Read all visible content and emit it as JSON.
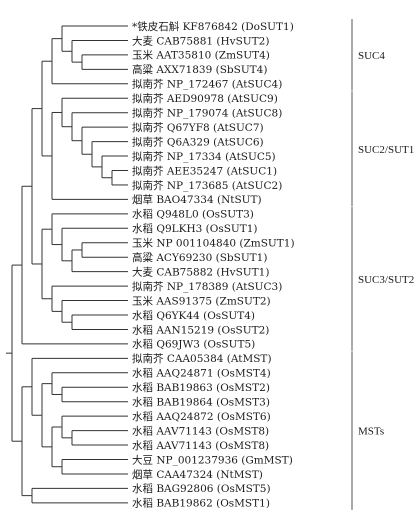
{
  "colors": {
    "line": "#333333",
    "text": "#1a1a1a",
    "background": "#ffffff"
  },
  "leaves": [
    "*铁皮石斛 KF876842 (DoSUT1)",
    "大麦 CAB75881 (HvSUT2)",
    "玉米 AAT35810 (ZmSUT4)",
    "高粱 AXX71839 (SbSUT4)",
    "拟南芥 NP_172467 (AtSUC4)",
    "拟南芥 AED90978 (AtSUC9)",
    "拟南芥 NP_179074 (AtSUC8)",
    "拟南芥 Q67YF8 (AtSUC7)",
    "拟南芥 Q6A329 (AtSUC6)",
    "拟南芥 NP_17334 (AtSUC5)",
    "拟南芥 AEE35247 (AtSUC1)",
    "拟南芥 NP_173685 (AtSUC2)",
    "烟草 BAO47334 (NtSUT)",
    "水稻 Q948L0 (OsSUT3)",
    "水稻 Q9LKH3 (OsSUT1)",
    "玉米 NP 001104840 (ZmSUT1)",
    "高粱 ACY69230 (SbSUT1)",
    "大麦 CAB75882 (HvSUT1)",
    "拟南芥 NP_178389 (AtSUC3)",
    "玉米 AAS91375 (ZmSUT2)",
    "水稻 Q6YK44 (OsSUT4)",
    "水稻 AAN15219 (OsSUT2)",
    "水稻 Q69JW3 (OsSUT5)",
    "拟南芥 CAA05384 (AtMST)",
    "水稻 AAQ24871 (OsMST4)",
    "水稻 BAB19863 (OsMST2)",
    "水稻 BAB19864 (OsMST3)",
    "水稻 AAQ24872 (OsMST6)",
    "水稻 AAV71143 (OsMST8)",
    "水稻 AAV71143 (OsMST8)",
    "大豆 NP_001237936 (GmMST)",
    "烟草 CAA47324 (NtMST)",
    "水稻 BAG92806 (OsMST5)",
    "水稻 BAB19862 (OsMST1)"
  ],
  "groups": [
    {
      "label": "SUC4",
      "first_leaf": 0,
      "last_leaf": 4
    },
    {
      "label": "SUC2/SUT1",
      "first_leaf": 5,
      "last_leaf": 12
    },
    {
      "label": "SUC3/SUT2",
      "first_leaf": 13,
      "last_leaf": 22
    },
    {
      "label": "MSTs",
      "first_leaf": 23,
      "last_leaf": 33
    }
  ],
  "tree": {
    "c": [
      {
        "c": [
          {
            "c": [
              {
                "c": [
                  {
                    "c": [
                      {
                        "c": [
                          0,
                          {
                            "c": [
                              1,
                              {
                                "c": [
                                  2,
                                  3
                                ]
                              }
                            ]
                          }
                        ]
                      },
                      4
                    ]
                  },
                  {
                    "c": [
                      {
                        "c": [
                          5,
                          {
                            "c": [
                              6,
                              {
                                "c": [
                                  7,
                                  {
                                    "c": [
                                      8,
                                      {
                                        "c": [
                                          9,
                                          {
                                            "c": [
                                              10,
                                              11
                                            ]
                                          }
                                        ]
                                      }
                                    ]
                                  }
                                ]
                              }
                            ]
                          }
                        ]
                      },
                      12
                    ]
                  }
                ]
              },
              {
                "c": [
                  {
                    "c": [
                      13,
                      {
                        "c": [
                          14,
                          {
                            "c": [
                              {
                                "c": [
                                  15,
                                  16
                                ]
                              },
                              17
                            ]
                          }
                        ]
                      }
                    ]
                  },
                  {
                    "c": [
                      18,
                      {
                        "c": [
                          19,
                          {
                            "c": [
                              20,
                              21
                            ]
                          }
                        ]
                      }
                    ]
                  }
                ]
              }
            ]
          },
          22
        ]
      },
      {
        "c": [
          {
            "c": [
              23,
              {
                "c": [
                  {
                    "c": [
                      24,
                      {
                        "c": [
                          25,
                          26
                        ]
                      }
                    ]
                  },
                  {
                    "c": [
                      {
                        "c": [
                          27,
                          {
                            "c": [
                              28,
                              29
                            ]
                          }
                        ]
                      },
                      {
                        "c": [
                          30,
                          31
                        ]
                      }
                    ]
                  }
                ]
              }
            ]
          },
          {
            "c": [
              32,
              33
            ]
          }
        ]
      }
    ]
  }
}
